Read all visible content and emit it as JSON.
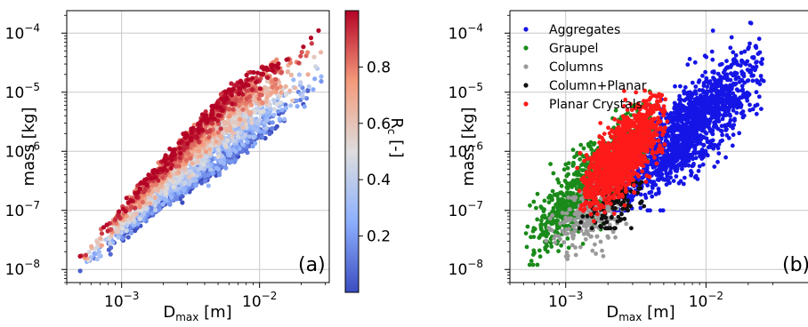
{
  "chart_data": [
    {
      "type": "scatter",
      "panel": "(a)",
      "xlabel_main": "D",
      "xlabel_sub": "max",
      "xlabel_unit": " [m]",
      "ylabel": "mass [kg]",
      "xscale": "log",
      "yscale": "log",
      "xlim": [
        0.0004,
        0.032
      ],
      "ylim": [
        6e-09,
        0.00024
      ],
      "xticks": [
        {
          "value": 0.001,
          "base": "10",
          "exp": "−3"
        },
        {
          "value": 0.01,
          "base": "10",
          "exp": "−2"
        }
      ],
      "yticks": [
        {
          "value": 1e-08,
          "base": "10",
          "exp": "−8"
        },
        {
          "value": 1e-07,
          "base": "10",
          "exp": "−7"
        },
        {
          "value": 1e-06,
          "base": "10",
          "exp": "−6"
        },
        {
          "value": 1e-05,
          "base": "10",
          "exp": "−5"
        },
        {
          "value": 0.0001,
          "base": "10",
          "exp": "−4"
        }
      ],
      "grid": true,
      "color_by": "riming degree R_c",
      "colorbar": {
        "label_main": "R",
        "label_sub": "c",
        "label_unit": " [-]",
        "range": [
          0.0,
          1.0
        ],
        "ticks": [
          "0.2",
          "0.4",
          "0.6",
          "0.8"
        ],
        "tick_values": [
          0.2,
          0.4,
          0.6,
          0.8
        ],
        "colormap": "coolwarm",
        "low_color": "#3b4cc0",
        "mid_color": "#dddddd",
        "high_color": "#b40426"
      },
      "point_cloud": {
        "x_range": [
          0.0005,
          0.028
        ],
        "trend": "mass increases with D_max roughly as D_max^2; highly rimed particles (R_c near 1) lie on the upper edge, unrimed (R_c near 0) on the lower edge",
        "upper_edge": [
          [
            0.0005,
            1.6e-08
          ],
          [
            0.001,
            1.2e-07
          ],
          [
            0.002,
            7e-07
          ],
          [
            0.004,
            4e-06
          ],
          [
            0.006,
            1.2e-05
          ],
          [
            0.01,
            2.5e-05
          ],
          [
            0.02,
            6e-05
          ],
          [
            0.028,
            0.00015
          ]
        ],
        "lower_edge": [
          [
            0.0005,
            1e-08
          ],
          [
            0.001,
            3e-08
          ],
          [
            0.002,
            1.2e-07
          ],
          [
            0.004,
            3e-07
          ],
          [
            0.006,
            6e-07
          ],
          [
            0.01,
            1.5e-06
          ],
          [
            0.02,
            5e-06
          ],
          [
            0.028,
            1.2e-05
          ]
        ]
      },
      "point_radius_note": "dense scatter of several thousand points"
    },
    {
      "type": "scatter",
      "panel": "(b)",
      "xlabel_main": "D",
      "xlabel_sub": "max",
      "xlabel_unit": " [m]",
      "ylabel": "mass [kg]",
      "xscale": "log",
      "yscale": "log",
      "xlim": [
        0.0004,
        0.032
      ],
      "ylim": [
        6e-09,
        0.00024
      ],
      "xticks": [
        {
          "value": 0.001,
          "base": "10",
          "exp": "−3"
        },
        {
          "value": 0.01,
          "base": "10",
          "exp": "−2"
        }
      ],
      "yticks": [
        {
          "value": 1e-08,
          "base": "10",
          "exp": "−8"
        },
        {
          "value": 1e-07,
          "base": "10",
          "exp": "−7"
        },
        {
          "value": 1e-06,
          "base": "10",
          "exp": "−6"
        },
        {
          "value": 1e-05,
          "base": "10",
          "exp": "−5"
        },
        {
          "value": 0.0001,
          "base": "10",
          "exp": "−4"
        }
      ],
      "grid": true,
      "legend_position": "top-left",
      "series": [
        {
          "name": "Aggregates",
          "color": "#1515e6",
          "x_range": [
            0.002,
            0.028
          ],
          "y_range": [
            1e-07,
            0.00015
          ]
        },
        {
          "name": "Graupel",
          "color": "#1a8a1a",
          "x_range": [
            0.0005,
            0.0045
          ],
          "y_range": [
            1.2e-08,
            1.5e-05
          ]
        },
        {
          "name": "Columns",
          "color": "#9a9a9a",
          "x_range": [
            0.0007,
            0.003
          ],
          "y_range": [
            1.5e-08,
            3e-07
          ]
        },
        {
          "name": "Column+Planar",
          "color": "#111111",
          "x_range": [
            0.0012,
            0.004
          ],
          "y_range": [
            5e-08,
            3e-07
          ]
        },
        {
          "name": "Planar Crystals",
          "color": "#ff1a1a",
          "x_range": [
            0.0012,
            0.0055
          ],
          "y_range": [
            5e-08,
            1.5e-05
          ]
        }
      ]
    }
  ],
  "labels": {
    "panel_a": "(a)",
    "panel_b": "(b)"
  }
}
